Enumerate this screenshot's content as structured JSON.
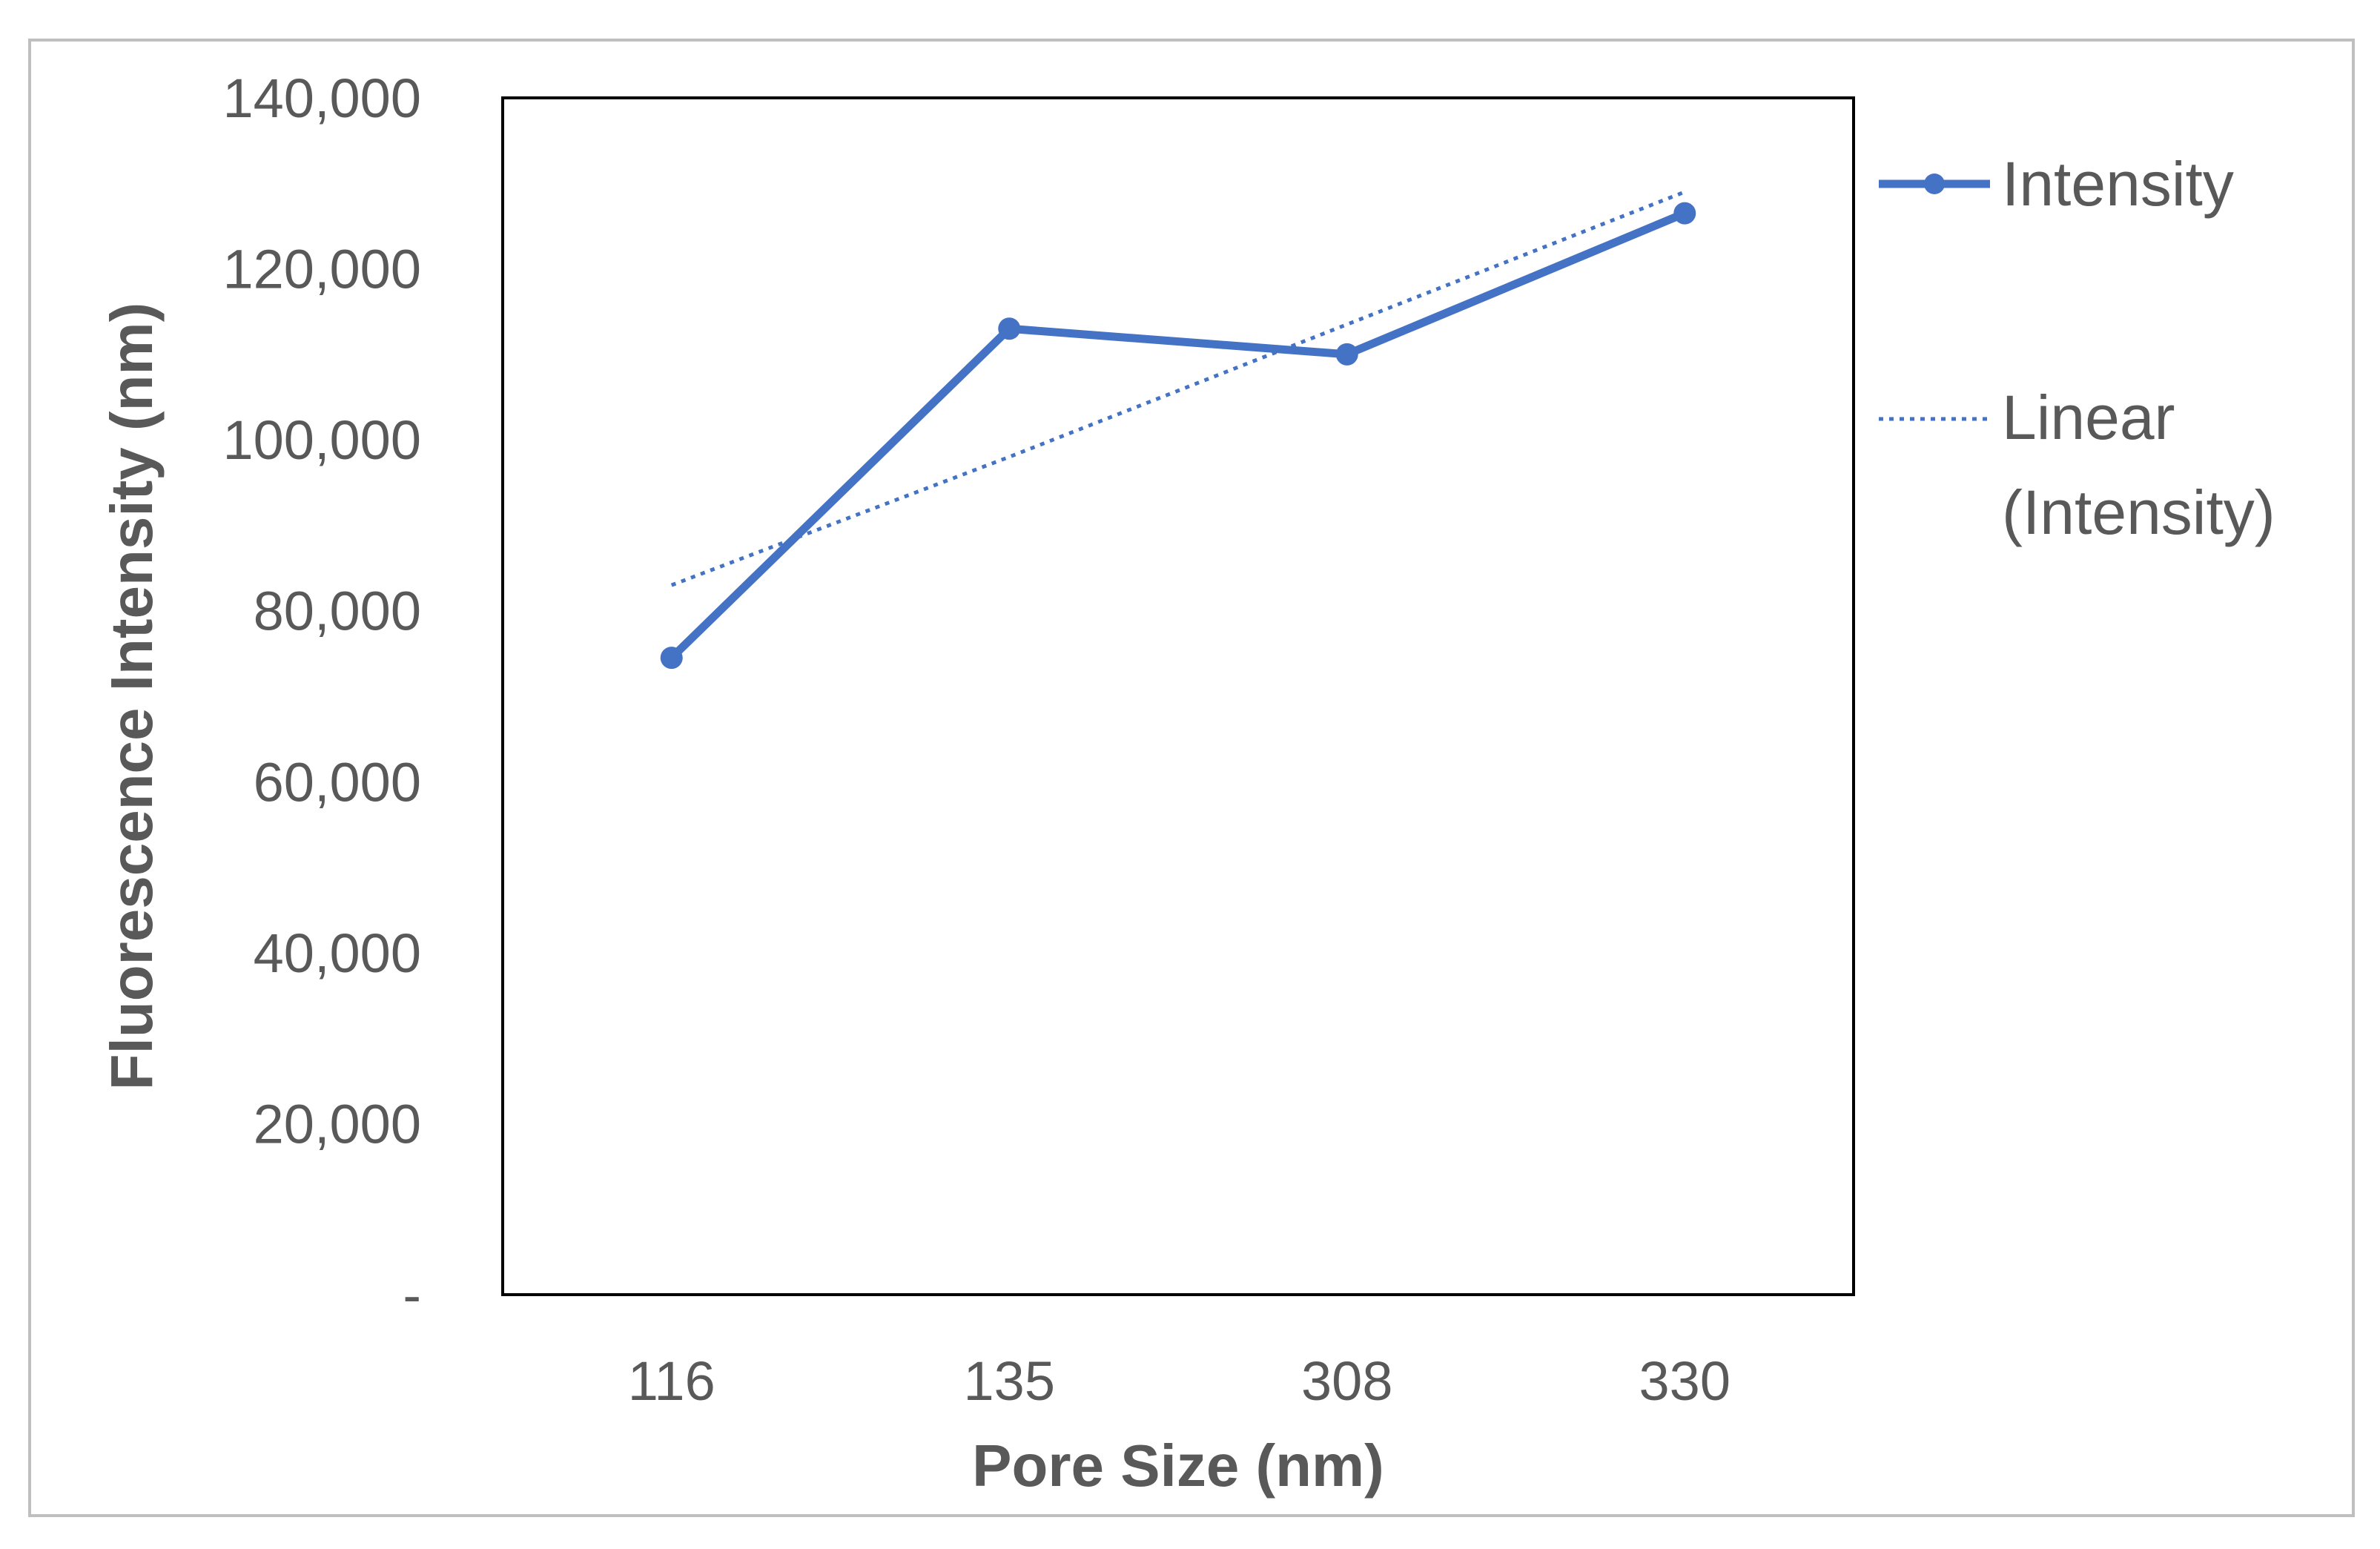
{
  "chart_data": {
    "type": "line",
    "categories": [
      "116",
      "135",
      "308",
      "330"
    ],
    "series": [
      {
        "name": "Intensity",
        "values": [
          74500,
          113000,
          110000,
          126500
        ],
        "color": "#4472C4",
        "style": "solid",
        "markers": true
      },
      {
        "name": "Linear (Intensity)",
        "values": [
          83000,
          98000,
          113500,
          129000
        ],
        "color": "#4472C4",
        "style": "dotted",
        "markers": false
      }
    ],
    "xlabel": "Pore Size (nm)",
    "ylabel": "Fluorescence  Intensity (nm)",
    "ylim": [
      0,
      140000
    ],
    "yticks": [
      0,
      20000,
      40000,
      60000,
      80000,
      100000,
      120000,
      140000
    ],
    "ytick_labels": [
      "-",
      "20,000",
      "40,000",
      "60,000",
      "80,000",
      "100,000",
      "120,000",
      "140,000"
    ],
    "grid": false,
    "legend_position": "right",
    "legend": {
      "entries": [
        {
          "lines": [
            "Intensity"
          ]
        },
        {
          "lines": [
            "Linear",
            "(Intensity)"
          ]
        }
      ]
    }
  }
}
